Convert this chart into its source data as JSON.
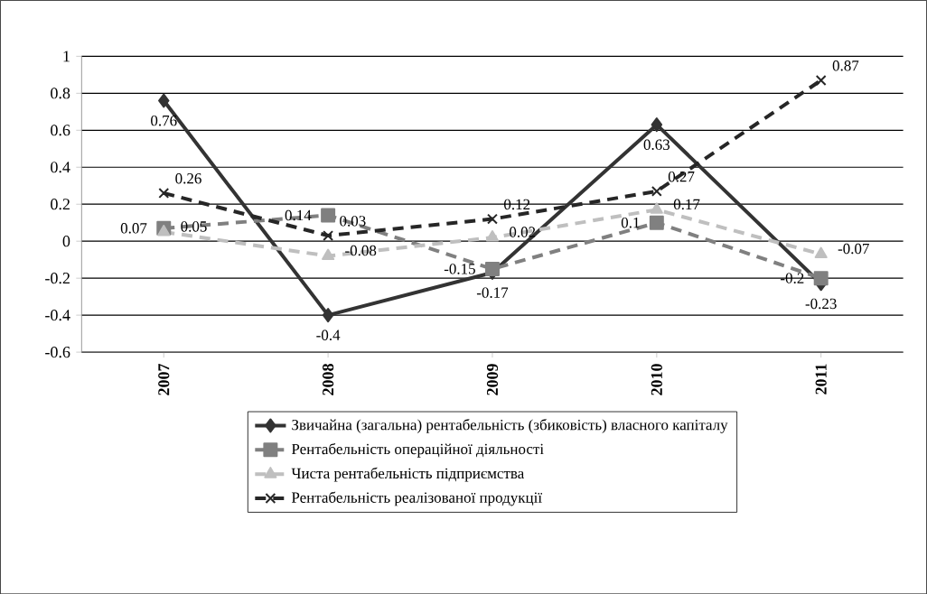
{
  "chart_data": {
    "type": "line",
    "categories": [
      "2007",
      "2008",
      "2009",
      "2010",
      "2011"
    ],
    "series": [
      {
        "name": "Звичайна (загальна) рентабельність (збиковість) власного капіталу",
        "color": "#333333",
        "marker": "diamond",
        "line_style": "solid",
        "values": [
          0.76,
          -0.4,
          -0.17,
          0.63,
          -0.23
        ]
      },
      {
        "name": "Рентабельність операційної діяльності",
        "color": "#808080",
        "marker": "square",
        "line_style": "dashed",
        "values": [
          0.07,
          0.14,
          -0.15,
          0.1,
          -0.2
        ]
      },
      {
        "name": "Чиста рентабельність підприємства",
        "color": "#bfbfbf",
        "marker": "triangle",
        "line_style": "dashed",
        "values": [
          0.05,
          -0.08,
          0.02,
          0.17,
          -0.07
        ]
      },
      {
        "name": "Рентабельність реалізованої продукції",
        "color": "#262626",
        "marker": "cross",
        "line_style": "dashed",
        "values": [
          0.26,
          0.03,
          0.12,
          0.27,
          0.87
        ]
      }
    ],
    "ylim": [
      -0.6,
      1
    ],
    "yticks": [
      -0.6,
      -0.4,
      -0.2,
      0,
      0.2,
      0.4,
      0.6,
      0.8,
      1
    ],
    "grid": "y",
    "legend": "bottom",
    "data_labels": true
  }
}
